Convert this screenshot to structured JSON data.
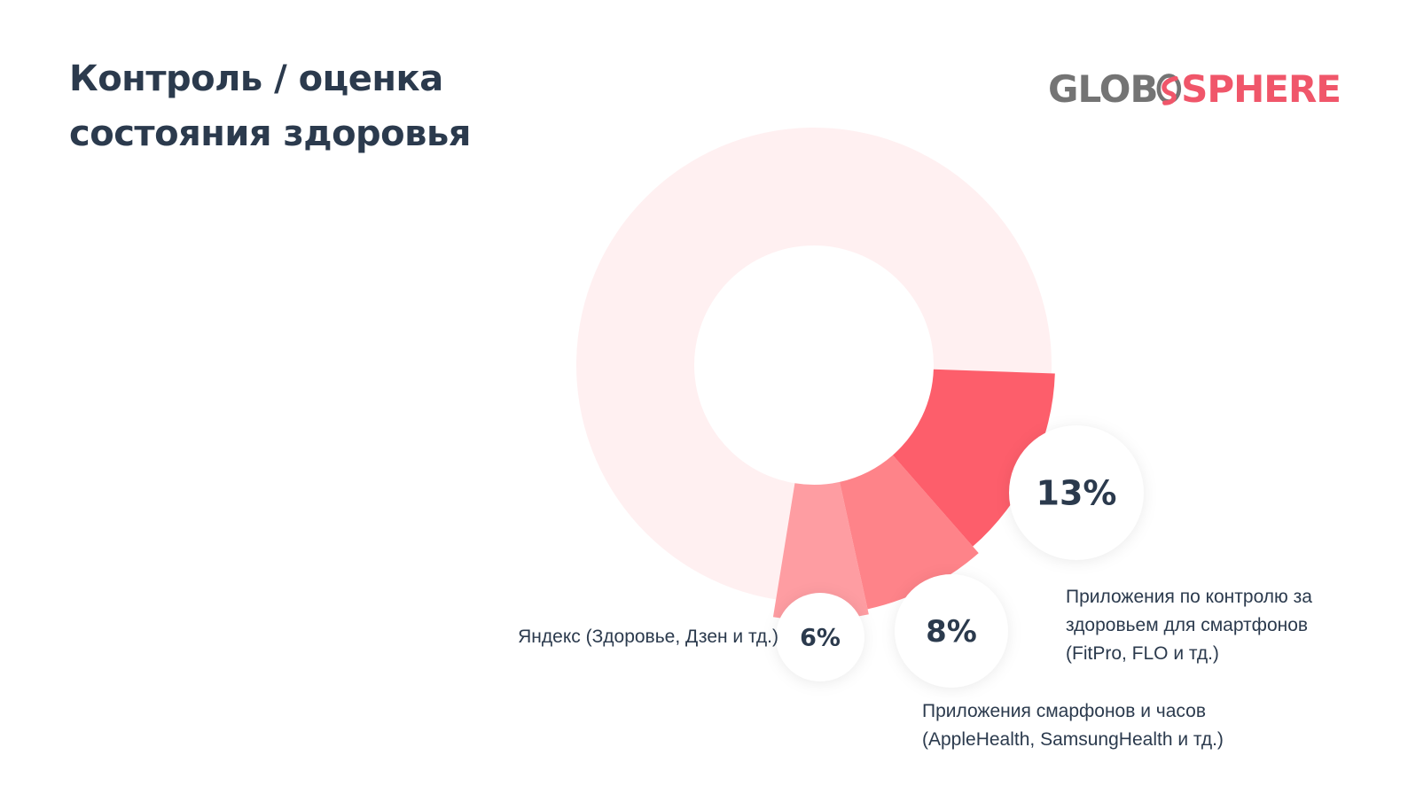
{
  "slide": {
    "title_lines": [
      "Контроль / оценка",
      "состояния здоровья"
    ]
  },
  "logo": {
    "part1": "GLOB",
    "part2": "SPHERE",
    "icon": "swirl-icon",
    "colors": {
      "gray": "#747474",
      "pink": "#f0566a"
    }
  },
  "chart_data": {
    "type": "pie",
    "variant": "donut",
    "start_angle_deg": 92,
    "slices": [
      {
        "label": "Приложения по контролю за\nздоровьем для смартфонов\n(FitPro, FLO и тд.)",
        "value": 13,
        "display": "13%",
        "color": "#fd5e6b"
      },
      {
        "label": "Приложения смарфонов и часов\n(AppleHealth, SamsungHealth и тд.)",
        "value": 8,
        "display": "8%",
        "color": "#fe8389"
      },
      {
        "label": "Яндекс (Здоровье, Дзен и тд.)",
        "value": 6,
        "display": "6%",
        "color": "#fe9da2"
      },
      {
        "label": "",
        "value": 73,
        "display": "",
        "color": "#fff0f1"
      }
    ]
  }
}
